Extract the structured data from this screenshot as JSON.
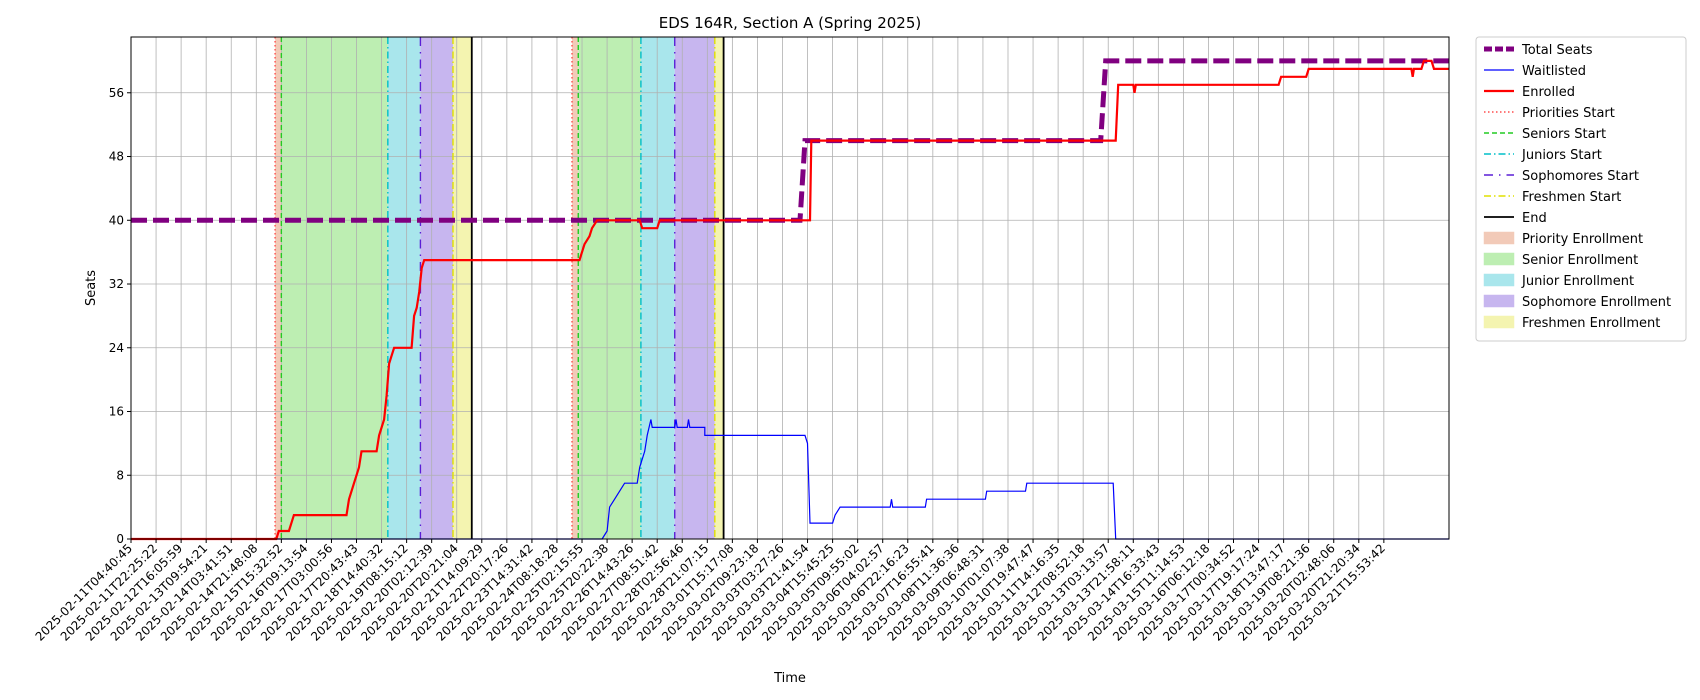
{
  "chart_data": {
    "type": "line",
    "title": "EDS 164R, Section A (Spring 2025)",
    "xlabel": "Time",
    "ylabel": "Seats",
    "ylim": [
      0,
      63
    ],
    "yticks": [
      0,
      8,
      16,
      24,
      32,
      40,
      48,
      56
    ],
    "grid": true,
    "legend_position": "outside-right",
    "x_tick_labels": [
      "2025-02-11T04:40:45",
      "2025-02-11T22:25:22",
      "2025-02-12T16:05:59",
      "2025-02-13T09:54:21",
      "2025-02-14T03:41:51",
      "2025-02-14T21:48:08",
      "2025-02-15T15:32:52",
      "2025-02-16T09:13:54",
      "2025-02-17T03:00:56",
      "2025-02-17T20:43:43",
      "2025-02-18T14:40:32",
      "2025-02-19T08:15:12",
      "2025-02-20T02:12:39",
      "2025-02-20T20:21:04",
      "2025-02-21T14:09:29",
      "2025-02-22T20:17:26",
      "2025-02-23T14:31:42",
      "2025-02-24T08:18:28",
      "2025-02-25T02:15:55",
      "2025-02-25T20:22:38",
      "2025-02-26T14:43:26",
      "2025-02-27T08:51:42",
      "2025-02-28T02:56:46",
      "2025-02-28T21:07:15",
      "2025-03-01T15:17:08",
      "2025-03-02T09:23:18",
      "2025-03-03T03:27:26",
      "2025-03-03T21:41:54",
      "2025-03-04T15:45:25",
      "2025-03-05T09:55:02",
      "2025-03-06T04:02:57",
      "2025-03-06T22:16:23",
      "2025-03-07T16:55:41",
      "2025-03-08T11:36:36",
      "2025-03-09T06:48:31",
      "2025-03-10T01:07:38",
      "2025-03-10T19:47:47",
      "2025-03-11T14:16:35",
      "2025-03-12T08:52:18",
      "2025-03-13T03:13:57",
      "2025-03-13T21:58:11",
      "2025-03-14T16:33:43",
      "2025-03-15T11:14:53",
      "2025-03-16T06:12:18",
      "2025-03-17T00:34:52",
      "2025-03-17T19:17:24",
      "2025-03-18T13:47:17",
      "2025-03-19T08:21:36",
      "2025-03-20T02:48:06",
      "2025-03-20T21:20:34",
      "2025-03-21T15:53:42"
    ],
    "x_range_index": [
      0,
      52.6
    ],
    "series": [
      {
        "name": "Total Seats",
        "color": "#800080",
        "style": "dashed",
        "points": [
          [
            0,
            40
          ],
          [
            26.7,
            40
          ],
          [
            26.9,
            50
          ],
          [
            38.7,
            50
          ],
          [
            38.9,
            60
          ],
          [
            52.6,
            60
          ]
        ]
      },
      {
        "name": "Waitlisted",
        "color": "#0000ff",
        "style": "solid",
        "points": [
          [
            0,
            0
          ],
          [
            18.8,
            0
          ],
          [
            19.0,
            1
          ],
          [
            19.1,
            4
          ],
          [
            19.3,
            5
          ],
          [
            19.5,
            6
          ],
          [
            19.7,
            7
          ],
          [
            20.2,
            7
          ],
          [
            20.3,
            9
          ],
          [
            20.5,
            11
          ],
          [
            20.6,
            13
          ],
          [
            20.75,
            15
          ],
          [
            20.8,
            14
          ],
          [
            21.7,
            14
          ],
          [
            21.75,
            15
          ],
          [
            21.8,
            14
          ],
          [
            22.2,
            14
          ],
          [
            22.25,
            15
          ],
          [
            22.3,
            14
          ],
          [
            22.9,
            14
          ],
          [
            22.9,
            13
          ],
          [
            26.9,
            13
          ],
          [
            27.0,
            12
          ],
          [
            27.1,
            2
          ],
          [
            28.0,
            2
          ],
          [
            28.1,
            3
          ],
          [
            28.3,
            4
          ],
          [
            30.3,
            4
          ],
          [
            30.35,
            5
          ],
          [
            30.4,
            4
          ],
          [
            31.7,
            4
          ],
          [
            31.75,
            5
          ],
          [
            34.1,
            5
          ],
          [
            34.15,
            6
          ],
          [
            35.7,
            6
          ],
          [
            35.75,
            7
          ],
          [
            39.2,
            7
          ],
          [
            39.3,
            0
          ],
          [
            52.6,
            0
          ]
        ]
      },
      {
        "name": "Enrolled",
        "color": "#ff0000",
        "style": "solid",
        "points": [
          [
            0,
            0
          ],
          [
            5.8,
            0
          ],
          [
            5.9,
            1
          ],
          [
            6.3,
            1
          ],
          [
            6.4,
            2
          ],
          [
            6.5,
            3
          ],
          [
            8.6,
            3
          ],
          [
            8.7,
            5
          ],
          [
            8.8,
            6
          ],
          [
            8.9,
            7
          ],
          [
            9.0,
            8
          ],
          [
            9.1,
            9
          ],
          [
            9.2,
            11
          ],
          [
            9.8,
            11
          ],
          [
            9.9,
            13
          ],
          [
            10.1,
            15
          ],
          [
            10.2,
            18
          ],
          [
            10.3,
            22
          ],
          [
            10.4,
            23
          ],
          [
            10.5,
            24
          ],
          [
            11.2,
            24
          ],
          [
            11.3,
            28
          ],
          [
            11.4,
            29
          ],
          [
            11.5,
            31
          ],
          [
            11.6,
            34
          ],
          [
            11.7,
            35
          ],
          [
            17.9,
            35
          ],
          [
            18.1,
            37
          ],
          [
            18.3,
            38
          ],
          [
            18.4,
            39
          ],
          [
            18.6,
            40
          ],
          [
            20.3,
            40
          ],
          [
            20.4,
            39
          ],
          [
            21.0,
            39
          ],
          [
            21.1,
            40
          ],
          [
            27.1,
            40
          ],
          [
            27.15,
            50
          ],
          [
            39.3,
            50
          ],
          [
            39.4,
            57
          ],
          [
            40.0,
            57
          ],
          [
            40.05,
            56
          ],
          [
            40.1,
            57
          ],
          [
            45.8,
            57
          ],
          [
            45.9,
            58
          ],
          [
            46.9,
            58
          ],
          [
            47.0,
            59
          ],
          [
            51.1,
            59
          ],
          [
            51.15,
            58
          ],
          [
            51.2,
            59
          ],
          [
            51.5,
            59
          ],
          [
            51.6,
            60
          ],
          [
            51.9,
            60
          ],
          [
            52.0,
            59
          ],
          [
            52.6,
            59
          ]
        ]
      }
    ],
    "phase_markers": [
      {
        "name": "Priorities Start",
        "color": "#ff4d4d",
        "style": "dotted",
        "x": [
          5.75,
          17.6
        ]
      },
      {
        "name": "Seniors Start",
        "color": "#22cc22",
        "style": "dashed",
        "x": [
          6.0,
          17.85
        ]
      },
      {
        "name": "Juniors Start",
        "color": "#00bfc8",
        "style": "dashdot",
        "x": [
          10.25,
          20.35
        ]
      },
      {
        "name": "Sophomores Start",
        "color": "#5a1fd6",
        "style": "dashdot2",
        "x": [
          11.55,
          21.7
        ]
      },
      {
        "name": "Freshmen Start",
        "color": "#e0e000",
        "style": "dashdot",
        "x": [
          12.85,
          23.3
        ]
      },
      {
        "name": "End",
        "color": "#000000",
        "style": "solid",
        "x": [
          13.6,
          23.65
        ]
      }
    ],
    "shaded_regions": [
      {
        "name": "Priority Enrollment",
        "color": "#f2cab8",
        "spans": [
          [
            5.75,
            6.0
          ],
          [
            17.6,
            17.85
          ]
        ]
      },
      {
        "name": "Senior Enrollment",
        "color": "#bdeeb2",
        "spans": [
          [
            6.0,
            10.25
          ],
          [
            17.85,
            20.35
          ]
        ]
      },
      {
        "name": "Junior Enrollment",
        "color": "#a9e6ec",
        "spans": [
          [
            10.25,
            11.55
          ],
          [
            20.35,
            21.7
          ]
        ]
      },
      {
        "name": "Sophomore Enrollment",
        "color": "#c7b6ef",
        "spans": [
          [
            11.55,
            12.85
          ],
          [
            21.7,
            23.3
          ]
        ]
      },
      {
        "name": "Freshmen Enrollment",
        "color": "#f4f4b0",
        "spans": [
          [
            12.85,
            13.6
          ],
          [
            23.3,
            23.65
          ]
        ]
      }
    ],
    "legend": [
      "Total Seats",
      "Waitlisted",
      "Enrolled",
      "Priorities Start",
      "Seniors Start",
      "Juniors Start",
      "Sophomores Start",
      "Freshmen Start",
      "End",
      "Priority Enrollment",
      "Senior Enrollment",
      "Junior Enrollment",
      "Sophomore Enrollment",
      "Freshmen Enrollment"
    ]
  }
}
